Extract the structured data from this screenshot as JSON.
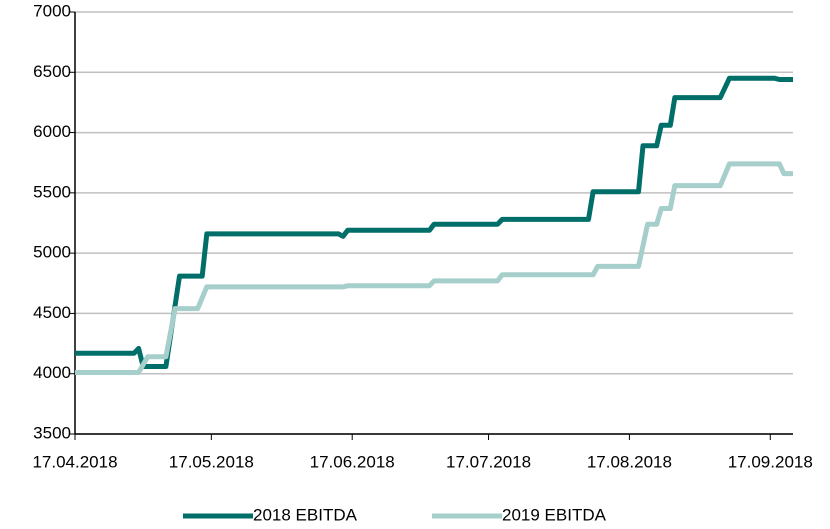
{
  "chart_data": {
    "type": "line",
    "xlim": [
      "17.04.2018",
      "22.09.2018"
    ],
    "xticks": [
      "17.04.2018",
      "17.05.2018",
      "17.06.2018",
      "17.07.2018",
      "17.08.2018",
      "17.09.2018"
    ],
    "ylim": [
      3500,
      7000
    ],
    "yticks": [
      3500,
      4000,
      4500,
      5000,
      5500,
      6000,
      6500,
      7000
    ],
    "grid": true,
    "legend": "bottom",
    "series": [
      {
        "name": "2018 EBITDA",
        "color": "#006e69",
        "x": [
          "17.04.2018",
          "30.04.2018",
          "01.05.2018",
          "02.05.2018",
          "07.05.2018",
          "10.05.2018",
          "15.05.2018",
          "16.05.2018",
          "14.06.2018",
          "15.06.2018",
          "16.06.2018",
          "04.07.2018",
          "05.07.2018",
          "19.07.2018",
          "20.07.2018",
          "08.08.2018",
          "09.08.2018",
          "19.08.2018",
          "20.08.2018",
          "23.08.2018",
          "24.08.2018",
          "26.08.2018",
          "27.08.2018",
          "06.09.2018",
          "08.09.2018",
          "18.09.2018",
          "19.09.2018",
          "22.09.2018"
        ],
        "values": [
          4170,
          4170,
          4210,
          4060,
          4060,
          4810,
          4810,
          5160,
          5160,
          5140,
          5190,
          5190,
          5240,
          5240,
          5280,
          5280,
          5510,
          5510,
          5890,
          5890,
          6060,
          6060,
          6290,
          6290,
          6450,
          6450,
          6440,
          6440
        ]
      },
      {
        "name": "2019 EBITDA",
        "color": "#a6cfcc",
        "x": [
          "17.04.2018",
          "01.05.2018",
          "03.05.2018",
          "07.05.2018",
          "09.05.2018",
          "14.05.2018",
          "16.05.2018",
          "15.06.2018",
          "16.06.2018",
          "04.07.2018",
          "05.07.2018",
          "19.07.2018",
          "20.07.2018",
          "09.08.2018",
          "10.08.2018",
          "19.08.2018",
          "21.08.2018",
          "23.08.2018",
          "24.08.2018",
          "26.08.2018",
          "27.08.2018",
          "06.09.2018",
          "08.09.2018",
          "19.09.2018",
          "20.09.2018",
          "22.09.2018"
        ],
        "values": [
          4010,
          4010,
          4140,
          4140,
          4540,
          4540,
          4720,
          4720,
          4730,
          4730,
          4770,
          4770,
          4820,
          4820,
          4890,
          4890,
          5240,
          5240,
          5370,
          5370,
          5560,
          5560,
          5740,
          5740,
          5660,
          5660
        ]
      }
    ]
  }
}
